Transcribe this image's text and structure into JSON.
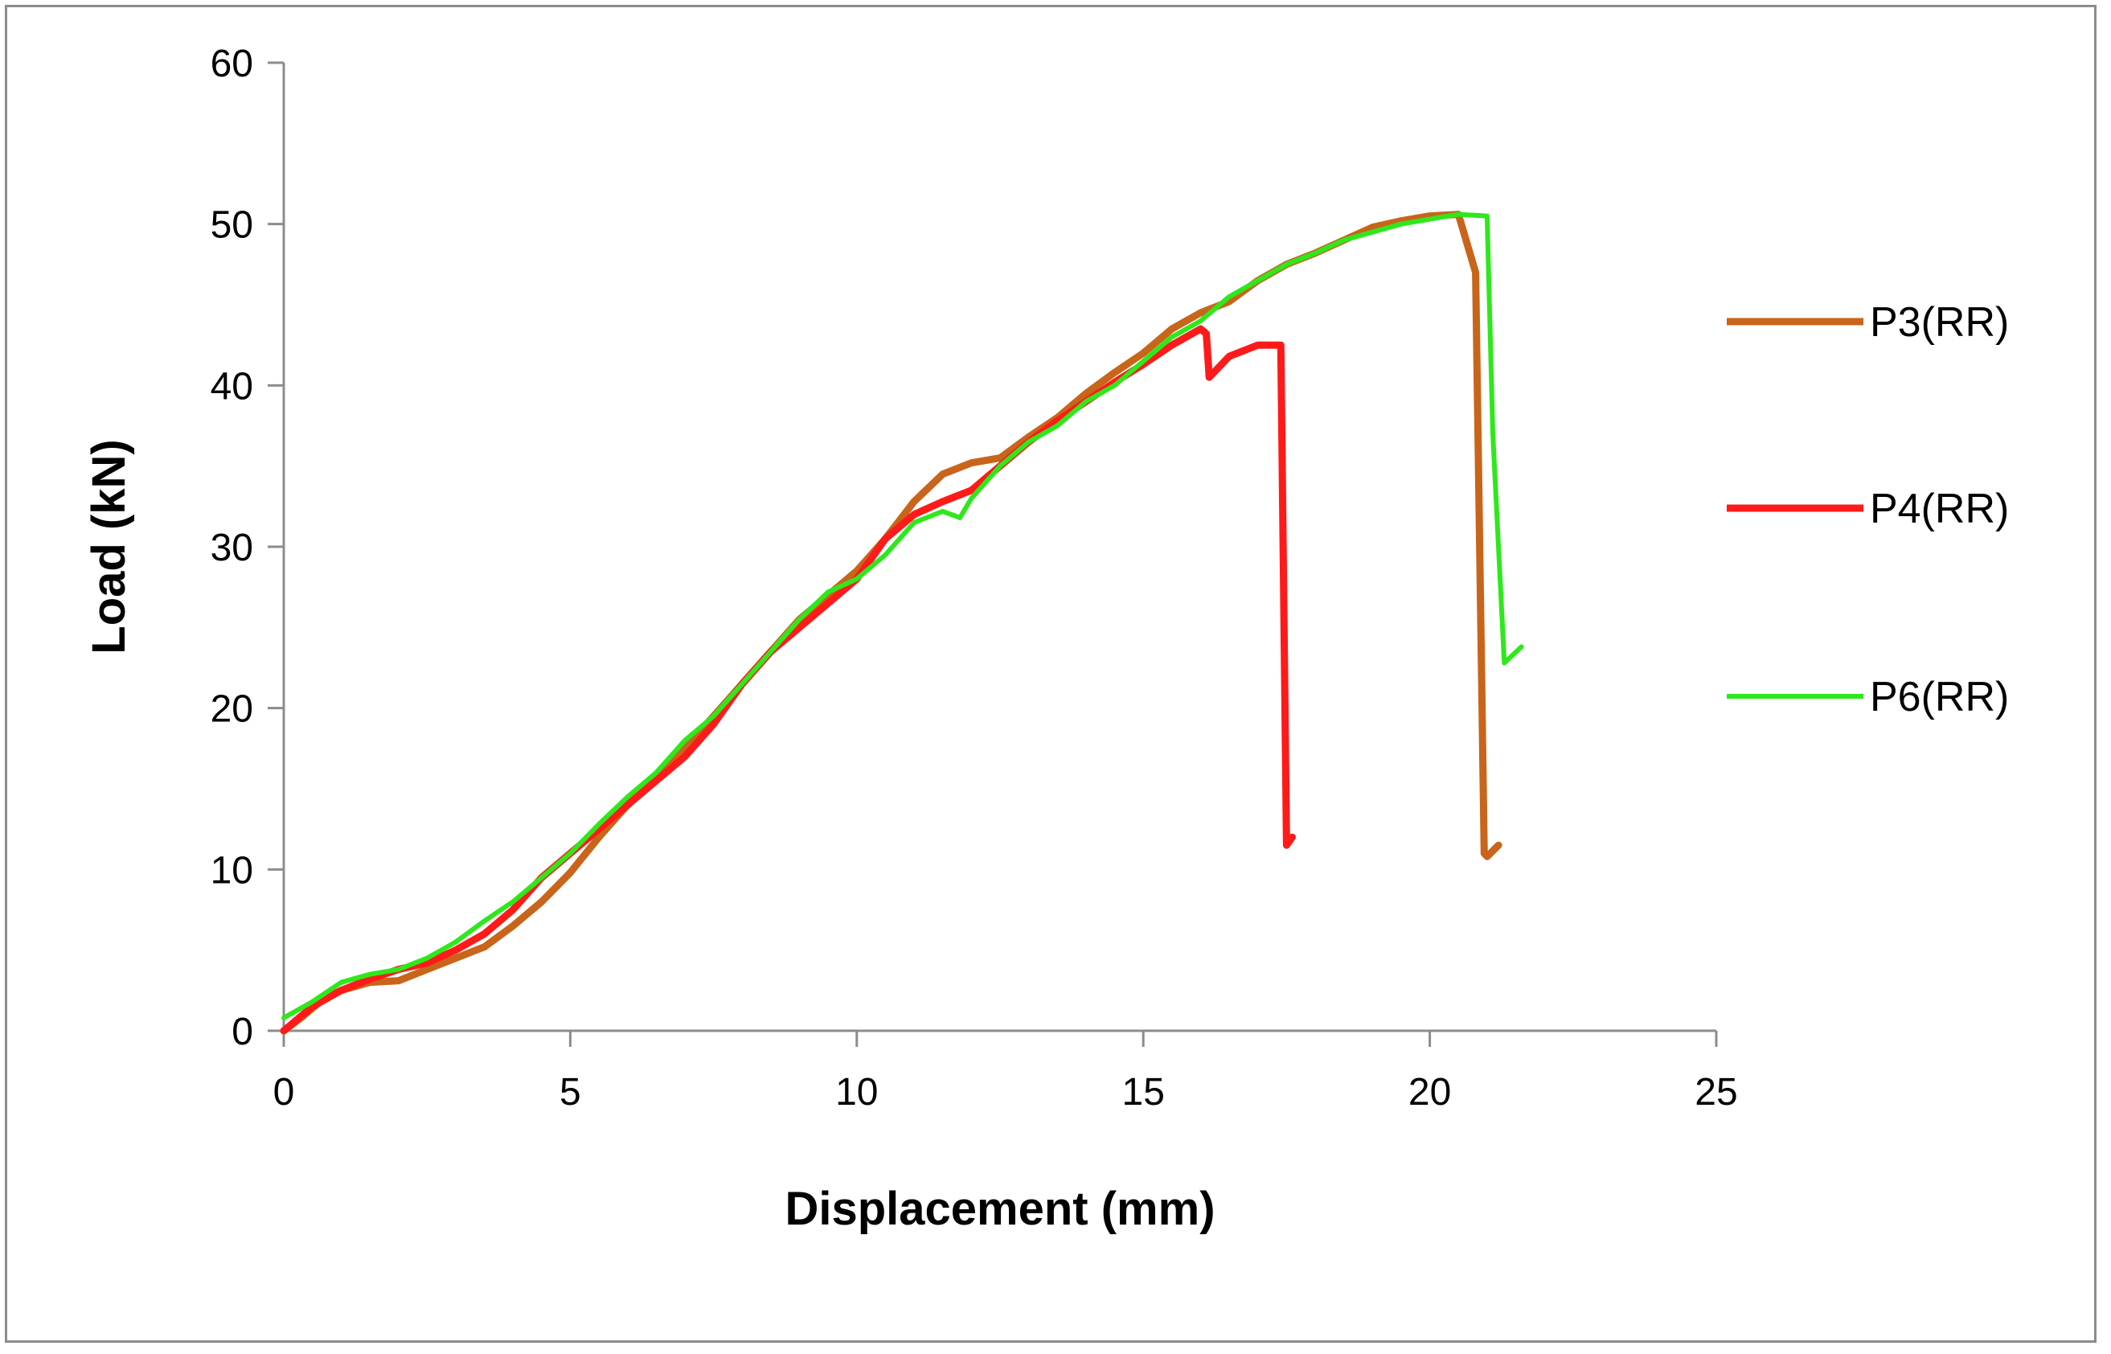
{
  "chart_data": {
    "type": "line",
    "title": "",
    "xlabel": "Displacement (mm)",
    "ylabel": "Load (kN)",
    "xlim": [
      0,
      25
    ],
    "ylim": [
      0,
      60
    ],
    "xticks": [
      0,
      5,
      10,
      15,
      20,
      25
    ],
    "yticks": [
      0,
      10,
      20,
      30,
      40,
      50,
      60
    ],
    "grid": false,
    "legend_position": "right",
    "series": [
      {
        "name": "P3(RR)",
        "color": "#c8651a",
        "x": [
          0,
          0.3,
          0.7,
          1.0,
          1.5,
          2.0,
          2.5,
          3.0,
          3.5,
          4.0,
          4.5,
          5.0,
          5.5,
          6.0,
          6.5,
          7.0,
          7.5,
          8.0,
          8.5,
          9.0,
          9.5,
          10.0,
          10.5,
          11.0,
          11.5,
          12.0,
          12.5,
          13.0,
          13.5,
          14.0,
          14.5,
          15.0,
          15.5,
          16.0,
          16.5,
          17.0,
          17.5,
          18.0,
          18.5,
          19.0,
          19.5,
          20.0,
          20.5,
          20.8,
          20.95,
          21.0,
          21.2
        ],
        "y": [
          0,
          0.8,
          2.0,
          2.5,
          3.0,
          3.1,
          3.8,
          4.5,
          5.2,
          6.5,
          8.0,
          9.8,
          12.0,
          14.0,
          15.8,
          17.5,
          19.5,
          21.5,
          23.5,
          25.5,
          27.0,
          28.5,
          30.5,
          32.8,
          34.5,
          35.2,
          35.5,
          36.8,
          38.0,
          39.5,
          40.8,
          42.0,
          43.5,
          44.5,
          45.2,
          46.5,
          47.5,
          48.2,
          49.0,
          49.8,
          50.2,
          50.5,
          50.6,
          47.0,
          11.0,
          10.8,
          11.5
        ]
      },
      {
        "name": "P4(RR)",
        "color": "#ff1a1a",
        "x": [
          0,
          0.5,
          1.0,
          1.5,
          2.0,
          2.5,
          3.0,
          3.5,
          4.0,
          4.5,
          5.0,
          5.5,
          6.0,
          6.5,
          7.0,
          7.5,
          8.0,
          8.5,
          9.0,
          9.5,
          10.0,
          10.5,
          11.0,
          11.5,
          12.0,
          12.5,
          13.0,
          13.5,
          14.0,
          14.5,
          15.0,
          15.5,
          16.0,
          16.1,
          16.15,
          16.5,
          17.0,
          17.4,
          17.5,
          17.6
        ],
        "y": [
          0,
          1.5,
          2.5,
          3.2,
          3.8,
          4.2,
          5.0,
          6.0,
          7.5,
          9.5,
          11.0,
          12.5,
          14.0,
          15.5,
          17.0,
          19.0,
          21.5,
          23.5,
          25.0,
          26.5,
          28.0,
          30.5,
          32.0,
          32.8,
          33.5,
          35.0,
          36.5,
          37.8,
          39.0,
          40.2,
          41.3,
          42.5,
          43.5,
          43.2,
          40.5,
          41.8,
          42.5,
          42.5,
          11.5,
          12.0
        ]
      },
      {
        "name": "P6(RR)",
        "color": "#2ee81c",
        "x": [
          0,
          0.5,
          1.0,
          1.5,
          2.0,
          2.5,
          3.0,
          3.5,
          4.0,
          4.5,
          5.0,
          5.5,
          6.0,
          6.5,
          7.0,
          7.5,
          8.0,
          8.5,
          9.0,
          9.5,
          10.0,
          10.5,
          11.0,
          11.5,
          11.8,
          12.0,
          12.5,
          13.0,
          13.5,
          14.0,
          14.5,
          15.0,
          15.5,
          16.0,
          16.5,
          17.0,
          17.5,
          18.0,
          18.5,
          19.0,
          19.5,
          20.0,
          20.5,
          21.0,
          21.1,
          21.3,
          21.6
        ],
        "y": [
          0.8,
          1.8,
          3.0,
          3.5,
          3.8,
          4.5,
          5.5,
          6.8,
          8.0,
          9.5,
          11.0,
          12.8,
          14.5,
          16.0,
          18.0,
          19.5,
          21.5,
          23.5,
          25.5,
          27.2,
          28.0,
          29.5,
          31.5,
          32.2,
          31.8,
          33.0,
          35.0,
          36.5,
          37.5,
          39.0,
          40.0,
          41.5,
          43.0,
          44.0,
          45.5,
          46.5,
          47.5,
          48.2,
          49.0,
          49.5,
          50.0,
          50.3,
          50.6,
          50.5,
          37.0,
          22.8,
          23.8
        ]
      }
    ]
  }
}
